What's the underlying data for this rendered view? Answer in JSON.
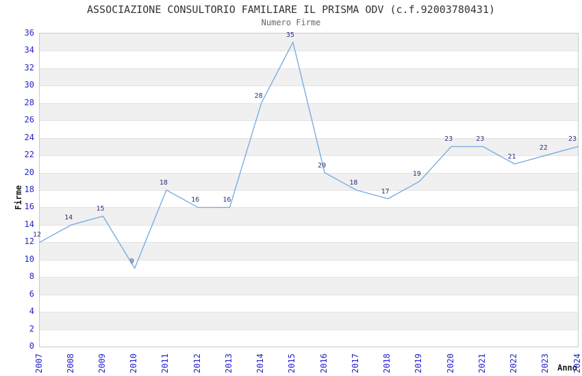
{
  "header": {
    "title": "ASSOCIAZIONE CONSULTORIO FAMILIARE IL PRISMA ODV (c.f.92003780431)",
    "subtitle": "Numero Firme"
  },
  "chart_data": {
    "type": "line",
    "title": "ASSOCIAZIONE CONSULTORIO FAMILIARE IL PRISMA ODV (c.f.92003780431)",
    "subtitle": "Numero Firme",
    "xlabel": "Anno",
    "ylabel": "Firme",
    "categories": [
      "2007",
      "2008",
      "2009",
      "2010",
      "2011",
      "2012",
      "2013",
      "2014",
      "2015",
      "2016",
      "2017",
      "2018",
      "2019",
      "2020",
      "2021",
      "2022",
      "2023",
      "2024"
    ],
    "values": [
      12,
      14,
      15,
      9,
      18,
      16,
      16,
      28,
      35,
      20,
      18,
      17,
      19,
      23,
      23,
      21,
      22,
      23
    ],
    "ylim": [
      0,
      36
    ],
    "ytick_step": 2,
    "xtick_rotation": -90,
    "grid": "horizontal stripes every 2 units, no vertical gridlines",
    "legend": "none",
    "point_markers": false,
    "data_labels_shown": true,
    "colors": {
      "line": "#79ade0",
      "tick_label": "#2222cc",
      "data_label": "#303080",
      "stripe": "#f0f0f0",
      "gridline": "#e2e2e2",
      "plot_border": "#c9c9c9",
      "title": "#333333",
      "subtitle": "#666666",
      "axis_label": "#1a1a1a",
      "background": "#ffffff"
    }
  }
}
